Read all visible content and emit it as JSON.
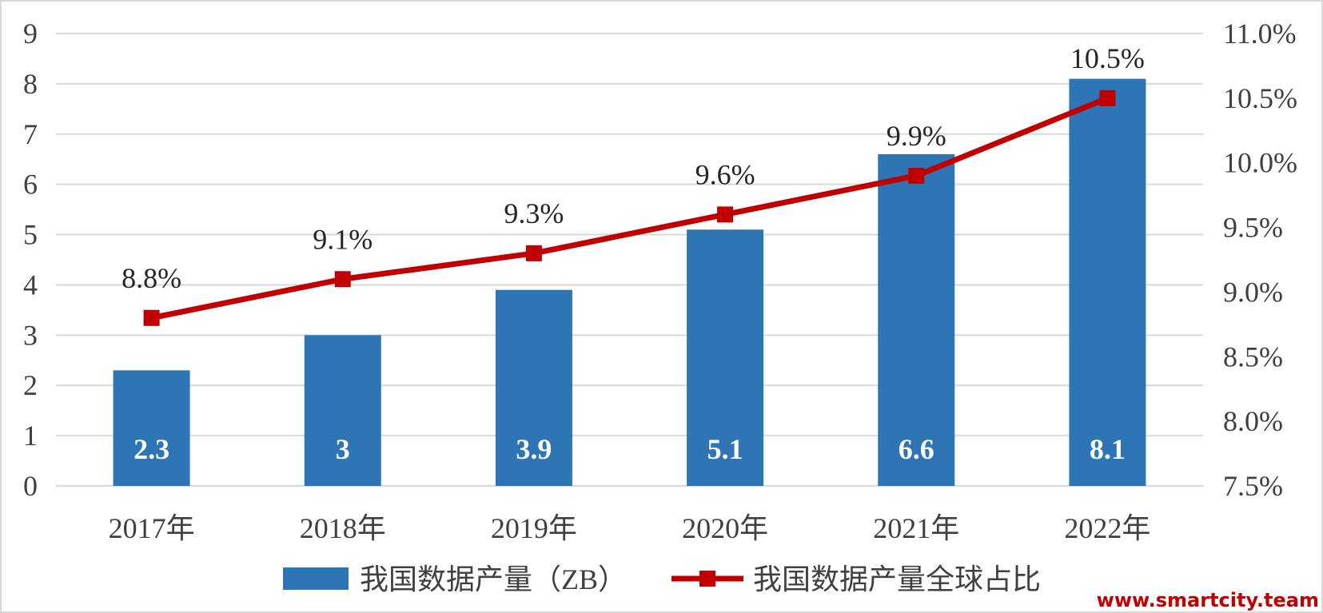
{
  "chart_data": {
    "type": "bar",
    "categories": [
      "2017年",
      "2018年",
      "2019年",
      "2020年",
      "2021年",
      "2022年"
    ],
    "series": [
      {
        "name": "我国数据产量（ZB）",
        "type": "bar",
        "axis": "left",
        "values": [
          2.3,
          3,
          3.9,
          5.1,
          6.6,
          8.1
        ],
        "labels": [
          "2.3",
          "3",
          "3.9",
          "5.1",
          "6.6",
          "8.1"
        ],
        "color": "#2e75b6"
      },
      {
        "name": "我国数据产量全球占比",
        "type": "line",
        "axis": "right",
        "values": [
          8.8,
          9.1,
          9.3,
          9.6,
          9.9,
          10.5
        ],
        "labels": [
          "8.8%",
          "9.1%",
          "9.3%",
          "9.6%",
          "9.9%",
          "10.5%"
        ],
        "color": "#c00000",
        "marker": "square"
      }
    ],
    "y_left": {
      "min": 0,
      "max": 9,
      "ticks": [
        0,
        1,
        2,
        3,
        4,
        5,
        6,
        7,
        8,
        9
      ],
      "tick_labels": [
        "0",
        "1",
        "2",
        "3",
        "4",
        "5",
        "6",
        "7",
        "8",
        "9"
      ]
    },
    "y_right": {
      "min": 7.5,
      "max": 11.0,
      "ticks": [
        7.5,
        8.0,
        8.5,
        9.0,
        9.5,
        10.0,
        10.5,
        11.0
      ],
      "tick_labels": [
        "7.5%",
        "8.0%",
        "8.5%",
        "9.0%",
        "9.5%",
        "10.0%",
        "10.5%",
        "11.0%"
      ]
    },
    "grid": true,
    "legend": "bottom"
  },
  "watermark": "www.smartcity.team",
  "colors": {
    "bar": "#2e75b6",
    "line": "#c00000",
    "grid": "#d9d9d9",
    "border": "#d9d9d9"
  }
}
